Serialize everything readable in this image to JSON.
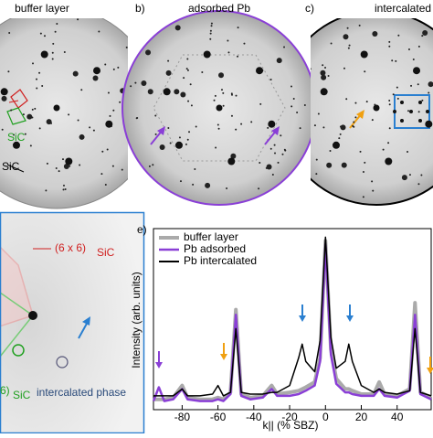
{
  "panels": {
    "a": {
      "title": "buffer layer",
      "sic_green": "SiC",
      "sic_black": "SiC"
    },
    "b": {
      "letter": "b)",
      "title": "adsorbed Pb"
    },
    "c": {
      "letter": "c)",
      "title": "intercalated"
    },
    "d": {
      "label_6x6": "(6 x 6)",
      "label_6x6_sub": "SiC",
      "label_cut": "6)",
      "label_cut_sub": "SiC",
      "label_phase": "intercalated phase"
    }
  },
  "chart_data": {
    "type": "line",
    "panel": "e)",
    "xlabel": "k|| (% SBZ)",
    "ylabel": "Intensity (arb. units)",
    "x": [
      -96,
      -93,
      -90,
      -85,
      -80,
      -77,
      -70,
      -63,
      -60,
      -57,
      -53,
      -50,
      -47,
      -42,
      -35,
      -30,
      -27,
      -20,
      -15,
      -13,
      -11,
      -6,
      -3,
      0,
      3,
      6,
      11,
      13,
      15,
      20,
      27,
      30,
      33,
      40,
      47,
      50,
      53,
      59
    ],
    "series": [
      {
        "name": "buffer layer",
        "color": "#aaaaaa",
        "width": 4,
        "values": [
          6,
          6,
          6,
          7,
          14,
          7,
          6,
          6,
          7,
          6,
          10,
          58,
          9,
          7,
          8,
          14,
          9,
          10,
          11,
          12,
          13,
          16,
          30,
          98,
          35,
          18,
          12,
          12,
          11,
          9,
          9,
          16,
          9,
          8,
          12,
          62,
          10,
          7
        ]
      },
      {
        "name": "Pb adsorbed",
        "color": "#8a3fd6",
        "width": 2.5,
        "values": [
          5,
          13,
          5,
          6,
          12,
          6,
          5,
          5,
          6,
          5,
          9,
          55,
          8,
          6,
          7,
          12,
          8,
          8,
          9,
          10,
          11,
          14,
          28,
          96,
          32,
          15,
          10,
          10,
          9,
          8,
          8,
          12,
          8,
          7,
          11,
          55,
          9,
          6
        ]
      },
      {
        "name": "Pb intercalated",
        "color": "#000000",
        "width": 1.5,
        "values": [
          8,
          8,
          8,
          8,
          12,
          8,
          8,
          9,
          14,
          8,
          10,
          47,
          10,
          9,
          9,
          10,
          10,
          14,
          30,
          38,
          28,
          22,
          40,
          100,
          42,
          24,
          28,
          38,
          28,
          14,
          10,
          12,
          10,
          9,
          11,
          47,
          10,
          8
        ]
      }
    ],
    "xlim": [
      -96,
      59
    ],
    "ylim": [
      0,
      105
    ],
    "xticks": [
      -80,
      -60,
      -40,
      -20,
      0,
      20,
      40
    ]
  }
}
